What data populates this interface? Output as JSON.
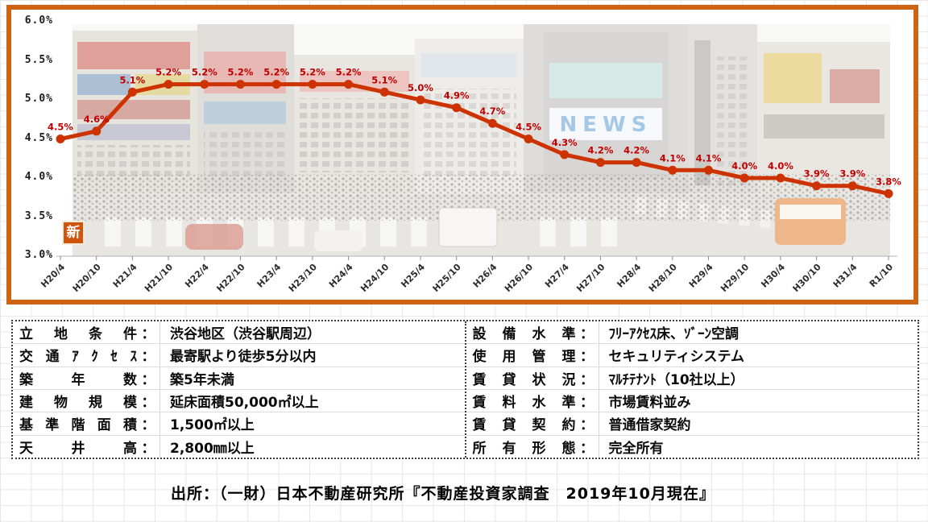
{
  "chart": {
    "badge": "新",
    "photo_sign": "NEWS",
    "colors": {
      "frame": "#cd6514",
      "line": "#cc3300",
      "point_label": "#c00000",
      "badge_bg": "#d0540e"
    }
  },
  "chart_data": {
    "type": "line",
    "title": "",
    "x": [
      "H20/4",
      "H20/10",
      "H21/4",
      "H21/10",
      "H22/4",
      "H22/10",
      "H23/4",
      "H23/10",
      "H24/4",
      "H24/10",
      "H25/4",
      "H25/10",
      "H26/4",
      "H26/10",
      "H27/4",
      "H27/10",
      "H28/4",
      "H28/10",
      "H29/4",
      "H29/10",
      "H30/4",
      "H30/10",
      "H31/4",
      "R1/10"
    ],
    "values": [
      4.5,
      4.6,
      5.1,
      5.2,
      5.2,
      5.2,
      5.2,
      5.2,
      5.2,
      5.1,
      5.0,
      4.9,
      4.7,
      4.5,
      4.3,
      4.2,
      4.2,
      4.1,
      4.1,
      4.0,
      4.0,
      3.9,
      3.9,
      3.8
    ],
    "point_labels": [
      "4.5%",
      "4.6%",
      "5.1%",
      "5.2%",
      "5.2%",
      "5.2%",
      "5.2%",
      "5.2%",
      "5.2%",
      "5.1%",
      "5.0%",
      "4.9%",
      "4.7%",
      "4.5%",
      "4.3%",
      "4.2%",
      "4.2%",
      "4.1%",
      "4.1%",
      "4.0%",
      "4.0%",
      "3.9%",
      "3.9%",
      "3.8%"
    ],
    "y_ticks": [
      "6.0%",
      "5.5%",
      "5.0%",
      "4.5%",
      "4.0%",
      "3.5%",
      "3.0%"
    ],
    "ylim": [
      3.0,
      6.0
    ],
    "grid": false,
    "legend": "none"
  },
  "table": {
    "colon": "：",
    "left_rows": [
      {
        "label": "立地条件",
        "value": "渋谷地区（渋谷駅周辺）"
      },
      {
        "label": "交通ｱｸｾｽ",
        "value": "最寄駅より徒歩5分以内"
      },
      {
        "label": "築年数",
        "value": "築5年未満"
      },
      {
        "label": "建物規模",
        "value": "延床面積50,000㎡以上"
      },
      {
        "label": "基準階面積",
        "value": "1,500㎡以上"
      },
      {
        "label": "天井高",
        "value": "2,800㎜以上"
      }
    ],
    "right_rows": [
      {
        "label": "設備水準",
        "value": "ﾌﾘｰｱｸｾｽ床、ｿﾞｰﾝ空調"
      },
      {
        "label": "使用管理",
        "value": "セキュリティシステム"
      },
      {
        "label": "賃貸状況",
        "value": "ﾏﾙﾁﾃﾅﾝﾄ（10社以上）"
      },
      {
        "label": "賃料水準",
        "value": "市場賃料並み"
      },
      {
        "label": "賃貸契約",
        "value": "普通借家契約"
      },
      {
        "label": "所有形態",
        "value": "完全所有"
      }
    ]
  },
  "source_line": "出所：（一財）日本不動産研究所『不動産投資家調査　2019年10月現在』"
}
